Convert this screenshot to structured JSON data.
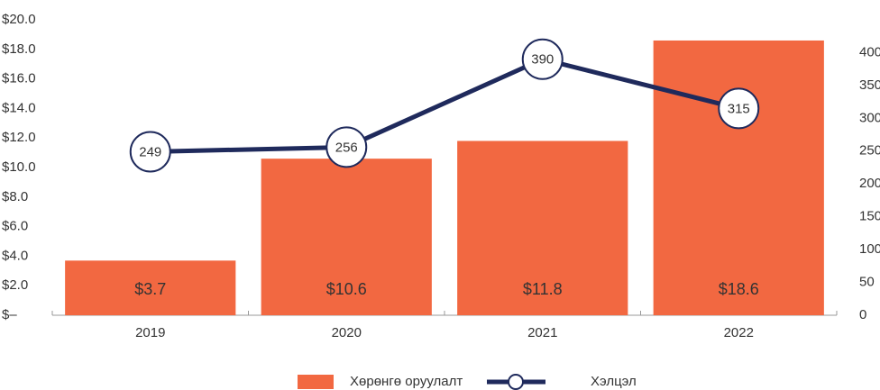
{
  "chart_data": {
    "type": "bar-line",
    "categories": [
      "2019",
      "2020",
      "2021",
      "2022"
    ],
    "series": [
      {
        "name": "Хөрөнгө оруулалт",
        "type": "bar",
        "color": "#f26841",
        "values": [
          3.7,
          10.6,
          11.8,
          18.6
        ],
        "value_labels": [
          "$3.7",
          "$10.6",
          "$11.8",
          "$18.6"
        ]
      },
      {
        "name": "Хэлцэл",
        "type": "line",
        "axis": "y2",
        "color": "#1f2a5c",
        "values": [
          249,
          256,
          390,
          315
        ]
      }
    ],
    "ylim": [
      0,
      20
    ],
    "yticks": [
      {
        "value": 0,
        "label": "$–"
      },
      {
        "value": 2,
        "label": "$2.0"
      },
      {
        "value": 4,
        "label": "$4.0"
      },
      {
        "value": 6,
        "label": "$6.0"
      },
      {
        "value": 8,
        "label": "$8.0"
      },
      {
        "value": 10,
        "label": "$10.0"
      },
      {
        "value": 12,
        "label": "$12.0"
      },
      {
        "value": 14,
        "label": "$14.0"
      },
      {
        "value": 16,
        "label": "$16.0"
      },
      {
        "value": 18,
        "label": "$18.0"
      },
      {
        "value": 20,
        "label": "$20.0"
      }
    ],
    "y2lim": [
      0,
      450
    ],
    "y2ticks": [
      0,
      50,
      100,
      150,
      200,
      250,
      300,
      350,
      400
    ],
    "legend": "bottom"
  }
}
